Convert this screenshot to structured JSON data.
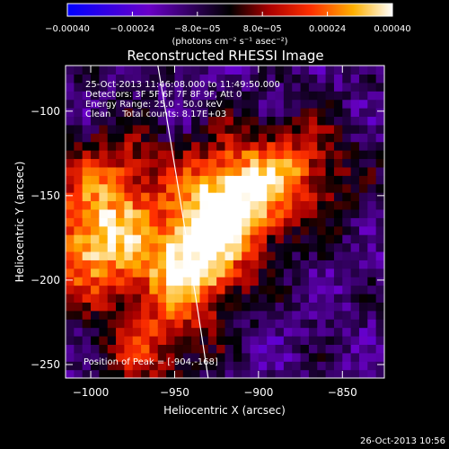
{
  "chart_data": {
    "type": "heatmap",
    "title": "Reconstructed RHESSI Image",
    "xlabel": "Heliocentric X (arcsec)",
    "ylabel": "Heliocentric Y (arcsec)",
    "xlim": [
      -1015,
      -825
    ],
    "ylim": [
      -258,
      -73
    ],
    "x_ticks": [
      -1000,
      -950,
      -900,
      -850
    ],
    "x_tick_labels": [
      "−1000",
      "−950",
      "−900",
      "−850"
    ],
    "y_ticks": [
      -100,
      -150,
      -200,
      -250
    ],
    "y_tick_labels": [
      "−100",
      "−150",
      "−200",
      "−250"
    ],
    "colorbar": {
      "min": -0.0004,
      "max": 0.0004,
      "tick_values": [
        -0.0004,
        -0.00024,
        -8e-05,
        8e-05,
        0.00024,
        0.0004
      ],
      "tick_labels": [
        "−0.00040",
        "−0.00024",
        "−8.0e−05",
        "8.0e−05",
        "0.00024",
        "0.00040"
      ],
      "units_label": "(photons cm⁻² s⁻¹ asec⁻²)"
    },
    "annotations": {
      "time_range": "25-Oct-2013 11:46:08.000 to 11:49:50.000",
      "detectors": "Detectors: 3F 5F 6F 7F 8F 9F, Att 0",
      "energy": "Energy Range: 25.0 - 50.0 keV",
      "clean_line": "Clean    Total counts: 8.17E+03",
      "peak": "Position of Peak = [-904,-168]"
    },
    "peak_position": [
      -904,
      -168
    ],
    "sources": [
      {
        "x": -915,
        "y": -150,
        "intensity": 1.0
      },
      {
        "x": -940,
        "y": -190,
        "intensity": 0.95
      },
      {
        "x": -1000,
        "y": -180,
        "intensity": 0.8
      },
      {
        "x": -985,
        "y": -140,
        "intensity": 0.55
      },
      {
        "x": -875,
        "y": -135,
        "intensity": 0.5
      },
      {
        "x": -965,
        "y": -240,
        "intensity": 0.45
      }
    ],
    "limb_line": [
      [
        -960,
        -73
      ],
      [
        -945,
        -160
      ],
      [
        -930,
        -258
      ]
    ],
    "footer_date": "26-Oct-2013 10:56"
  }
}
